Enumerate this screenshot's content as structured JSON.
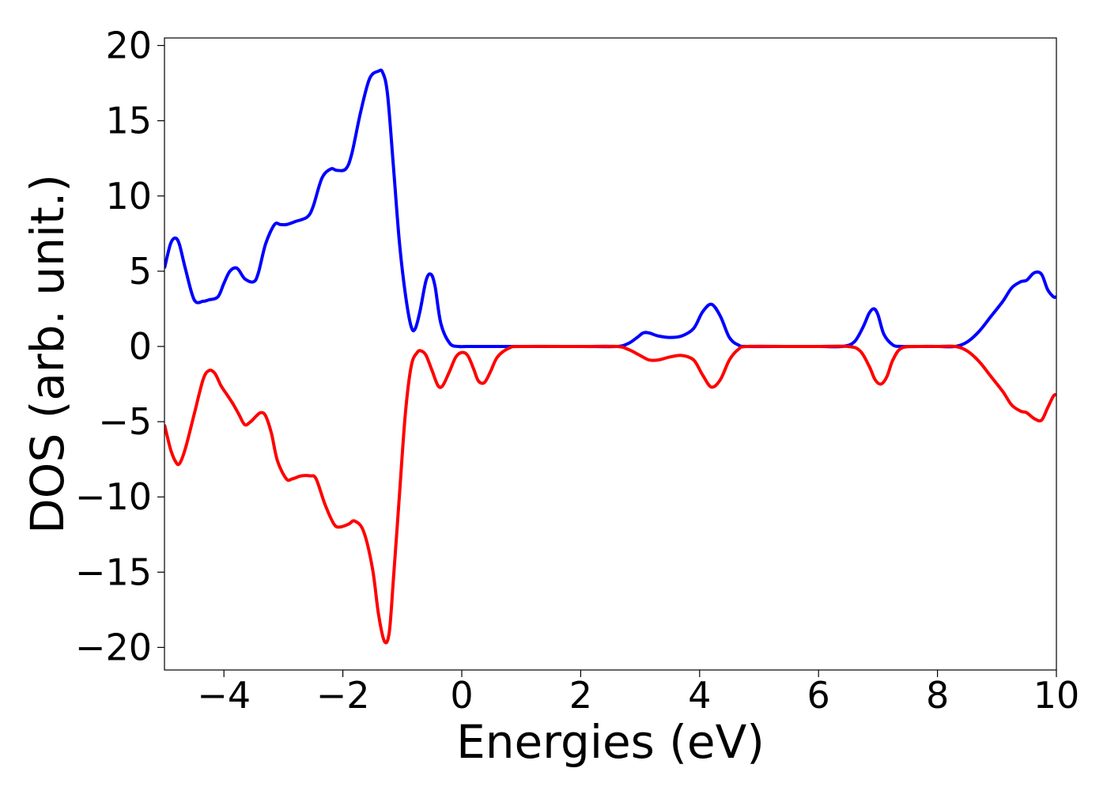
{
  "chart_data": {
    "type": "line",
    "title": "",
    "xlabel": "Energies (eV)",
    "ylabel": "DOS (arb. unit.)",
    "xlim": [
      -5,
      10
    ],
    "ylim": [
      -21.5,
      20.5
    ],
    "xticks": [
      -4,
      -2,
      0,
      2,
      4,
      6,
      8,
      10
    ],
    "yticks": [
      -20,
      -15,
      -10,
      -5,
      0,
      5,
      10,
      15,
      20
    ],
    "xtick_labels": [
      "−4",
      "−2",
      "0",
      "2",
      "4",
      "6",
      "8",
      "10"
    ],
    "ytick_labels": [
      "−20",
      "−15",
      "−10",
      "−5",
      "0",
      "5",
      "10",
      "15",
      "20"
    ],
    "grid": false,
    "legend": "none",
    "series": [
      {
        "color": "#0000ff",
        "x": [
          -5.0,
          -4.9,
          -4.82,
          -4.75,
          -4.65,
          -4.5,
          -4.35,
          -4.25,
          -4.1,
          -4.0,
          -3.9,
          -3.78,
          -3.65,
          -3.5,
          -3.42,
          -3.3,
          -3.15,
          -3.05,
          -2.95,
          -2.8,
          -2.6,
          -2.5,
          -2.35,
          -2.2,
          -2.1,
          -1.95,
          -1.85,
          -1.7,
          -1.55,
          -1.4,
          -1.33,
          -1.25,
          -1.15,
          -1.05,
          -0.95,
          -0.85,
          -0.78,
          -0.7,
          -0.6,
          -0.52,
          -0.45,
          -0.35,
          -0.2,
          -0.05,
          0.1,
          0.5,
          1.0,
          2.0,
          2.6,
          2.8,
          2.95,
          3.05,
          3.15,
          3.3,
          3.5,
          3.7,
          3.9,
          4.05,
          4.2,
          4.35,
          4.5,
          4.65,
          4.8,
          5.5,
          6.0,
          6.4,
          6.6,
          6.75,
          6.85,
          6.93,
          7.0,
          7.1,
          7.25,
          7.4,
          7.7,
          8.0,
          8.3,
          8.5,
          8.7,
          8.9,
          9.1,
          9.25,
          9.4,
          9.5,
          9.63,
          9.75,
          9.85,
          9.95,
          10.0
        ],
        "y": [
          5.2,
          6.8,
          7.2,
          6.8,
          5.2,
          3.1,
          3.0,
          3.1,
          3.3,
          4.2,
          5.0,
          5.2,
          4.5,
          4.3,
          4.9,
          6.8,
          8.1,
          8.1,
          8.1,
          8.3,
          8.6,
          9.3,
          11.2,
          11.8,
          11.7,
          11.8,
          12.8,
          15.6,
          17.8,
          18.3,
          18.2,
          16.8,
          12.0,
          7.0,
          3.5,
          1.3,
          1.2,
          2.4,
          4.4,
          4.8,
          4.0,
          1.5,
          0.2,
          0.0,
          0.0,
          0.0,
          0.0,
          0.0,
          0.0,
          0.2,
          0.6,
          0.9,
          0.9,
          0.7,
          0.6,
          0.7,
          1.2,
          2.3,
          2.8,
          2.0,
          0.6,
          0.1,
          0.0,
          0.0,
          0.0,
          0.0,
          0.3,
          1.3,
          2.2,
          2.5,
          2.1,
          0.8,
          0.1,
          0.0,
          0.0,
          0.0,
          0.0,
          0.3,
          1.0,
          2.0,
          3.0,
          3.9,
          4.3,
          4.4,
          4.9,
          4.8,
          3.8,
          3.3,
          3.3
        ]
      },
      {
        "color": "#ff0000",
        "x": [
          -5.0,
          -4.9,
          -4.82,
          -4.75,
          -4.65,
          -4.5,
          -4.35,
          -4.25,
          -4.15,
          -4.05,
          -3.95,
          -3.85,
          -3.75,
          -3.65,
          -3.55,
          -3.45,
          -3.38,
          -3.3,
          -3.2,
          -3.1,
          -2.95,
          -2.85,
          -2.7,
          -2.55,
          -2.45,
          -2.3,
          -2.15,
          -2.05,
          -1.9,
          -1.8,
          -1.65,
          -1.5,
          -1.4,
          -1.3,
          -1.22,
          -1.15,
          -1.05,
          -0.95,
          -0.85,
          -0.75,
          -0.68,
          -0.6,
          -0.5,
          -0.4,
          -0.32,
          -0.2,
          -0.1,
          0.0,
          0.1,
          0.2,
          0.28,
          0.38,
          0.48,
          0.6,
          0.8,
          1.0,
          2.0,
          2.6,
          2.8,
          3.0,
          3.15,
          3.3,
          3.5,
          3.7,
          3.9,
          4.05,
          4.2,
          4.35,
          4.5,
          4.65,
          4.8,
          5.5,
          6.0,
          6.5,
          6.7,
          6.85,
          6.95,
          7.05,
          7.15,
          7.25,
          7.4,
          7.7,
          8.0,
          8.3,
          8.5,
          8.7,
          8.9,
          9.1,
          9.25,
          9.4,
          9.5,
          9.63,
          9.75,
          9.85,
          9.95,
          10.0
        ],
        "y": [
          -5.2,
          -6.8,
          -7.6,
          -7.8,
          -6.8,
          -4.5,
          -2.2,
          -1.6,
          -1.8,
          -2.6,
          -3.2,
          -3.8,
          -4.5,
          -5.2,
          -5.0,
          -4.6,
          -4.4,
          -4.6,
          -5.8,
          -7.6,
          -8.8,
          -8.8,
          -8.6,
          -8.6,
          -8.8,
          -10.5,
          -11.8,
          -12.0,
          -11.8,
          -11.6,
          -12.3,
          -14.8,
          -17.8,
          -19.6,
          -19.0,
          -15.5,
          -10.0,
          -4.5,
          -1.3,
          -0.4,
          -0.3,
          -0.6,
          -1.6,
          -2.6,
          -2.6,
          -1.6,
          -0.7,
          -0.4,
          -0.6,
          -1.5,
          -2.3,
          -2.4,
          -1.7,
          -0.7,
          -0.1,
          0.0,
          0.0,
          0.0,
          -0.2,
          -0.6,
          -0.9,
          -0.9,
          -0.7,
          -0.6,
          -0.9,
          -1.9,
          -2.7,
          -2.2,
          -0.9,
          -0.2,
          0.0,
          0.0,
          0.0,
          0.0,
          -0.3,
          -1.3,
          -2.2,
          -2.5,
          -2.0,
          -0.9,
          -0.1,
          0.0,
          0.0,
          0.0,
          -0.3,
          -1.0,
          -2.0,
          -3.0,
          -3.9,
          -4.3,
          -4.4,
          -4.8,
          -4.9,
          -4.1,
          -3.3,
          -3.2
        ]
      }
    ]
  }
}
